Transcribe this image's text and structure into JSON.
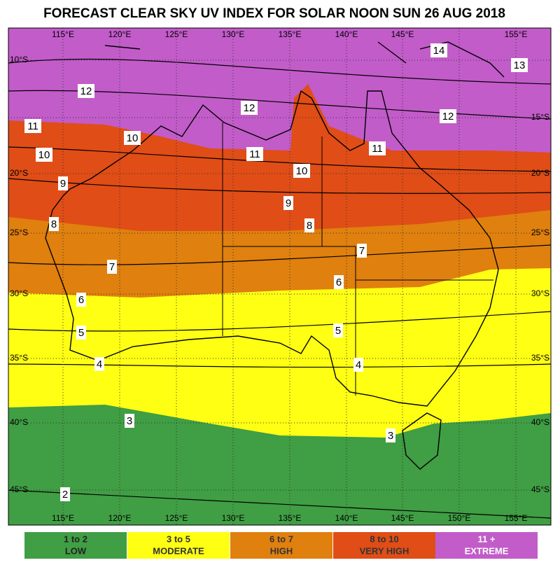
{
  "title": "FORECAST CLEAR SKY UV INDEX FOR SOLAR NOON SUN 26 AUG 2018",
  "longitude_labels": [
    "115°E",
    "120°E",
    "125°E",
    "130°E",
    "135°E",
    "140°E",
    "145°E",
    "150°E",
    "155°E"
  ],
  "latitude_labels": [
    "10°S",
    "15°S",
    "20°S",
    "25°S",
    "30°S",
    "35°S",
    "40°S",
    "45°S"
  ],
  "contour_labels": [
    "14",
    "13",
    "12",
    "12",
    "12",
    "11",
    "10",
    "11",
    "11",
    "10",
    "10",
    "9",
    "9",
    "8",
    "8",
    "7",
    "7",
    "6",
    "6",
    "5",
    "5",
    "4",
    "4",
    "3",
    "3",
    "2"
  ],
  "legend": [
    {
      "range": "1 to 2",
      "level": "LOW"
    },
    {
      "range": "3 to 5",
      "level": "MODERATE"
    },
    {
      "range": "6 to 7",
      "level": "HIGH"
    },
    {
      "range": "8 to 10",
      "level": "VERY HIGH"
    },
    {
      "range": "11 +",
      "level": "EXTREME"
    }
  ]
}
